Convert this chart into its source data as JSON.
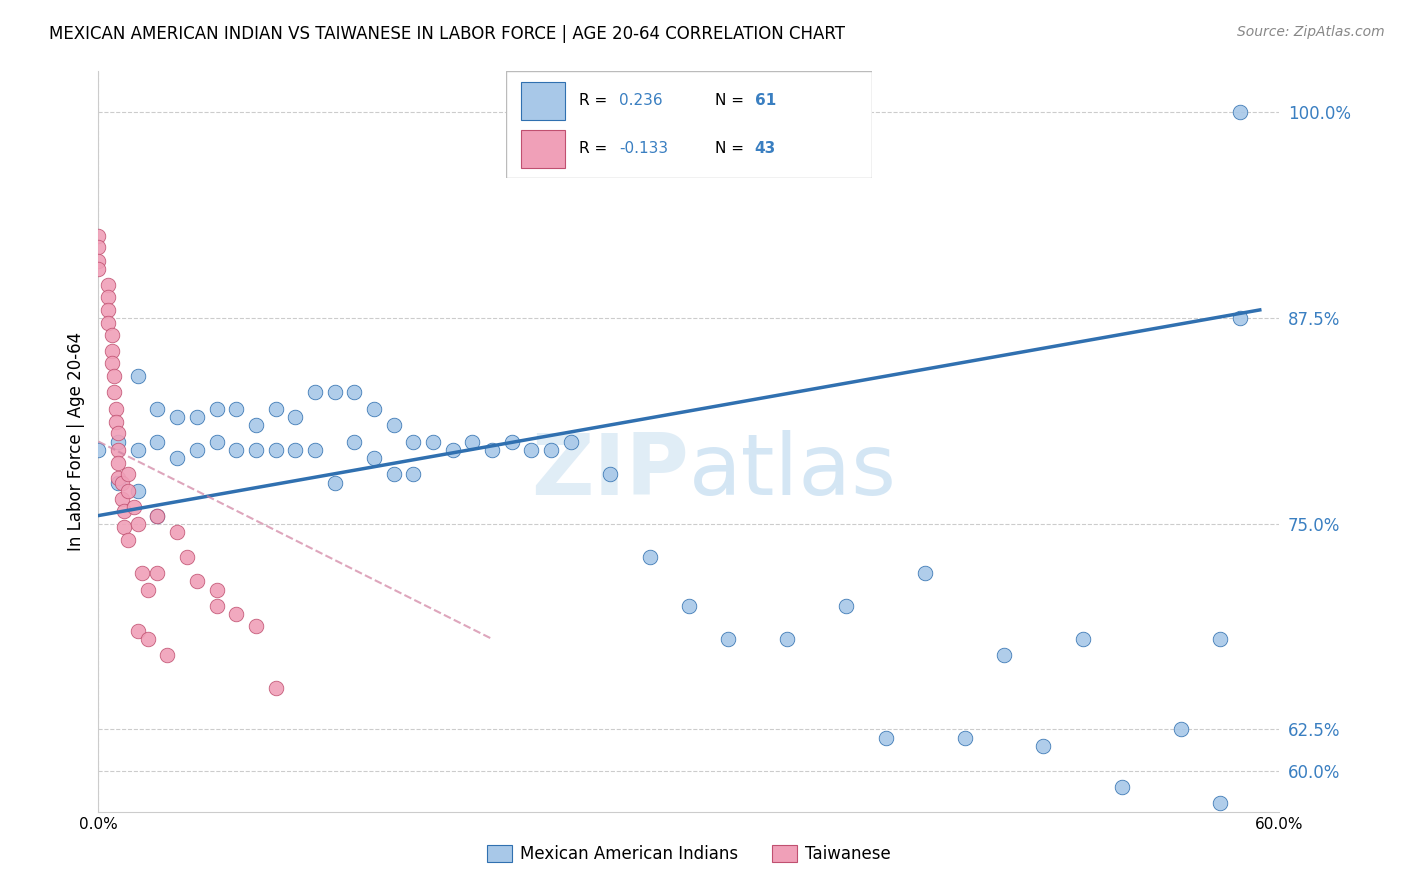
{
  "title": "MEXICAN AMERICAN INDIAN VS TAIWANESE IN LABOR FORCE | AGE 20-64 CORRELATION CHART",
  "source": "Source: ZipAtlas.com",
  "ylabel": "In Labor Force | Age 20-64",
  "r_blue": 0.236,
  "n_blue": 61,
  "r_pink": -0.133,
  "n_pink": 43,
  "legend_label_blue": "Mexican American Indians",
  "legend_label_pink": "Taiwanese",
  "xlim": [
    0.0,
    0.6
  ],
  "ylim": [
    0.575,
    1.025
  ],
  "yticks": [
    0.6,
    0.625,
    0.75,
    0.875,
    1.0
  ],
  "ytick_labels": [
    "60.0%",
    "62.5%",
    "75.0%",
    "87.5%",
    "100.0%"
  ],
  "xticks": [
    0.0,
    0.1,
    0.2,
    0.3,
    0.4,
    0.5,
    0.6
  ],
  "xtick_labels": [
    "0.0%",
    "",
    "",
    "",
    "",
    "",
    "60.0%"
  ],
  "watermark_zip": "ZIP",
  "watermark_atlas": "atlas",
  "blue_color": "#a8c8e8",
  "pink_color": "#f0a0b8",
  "trend_blue_color": "#3070b0",
  "trend_pink_color": "#d080a0",
  "blue_x": [
    0.0,
    0.01,
    0.01,
    0.02,
    0.02,
    0.02,
    0.03,
    0.03,
    0.03,
    0.04,
    0.04,
    0.05,
    0.05,
    0.06,
    0.06,
    0.07,
    0.07,
    0.08,
    0.08,
    0.09,
    0.09,
    0.1,
    0.1,
    0.11,
    0.11,
    0.12,
    0.12,
    0.13,
    0.13,
    0.14,
    0.14,
    0.15,
    0.15,
    0.16,
    0.16,
    0.17,
    0.18,
    0.19,
    0.2,
    0.21,
    0.22,
    0.23,
    0.24,
    0.26,
    0.28,
    0.3,
    0.32,
    0.35,
    0.38,
    0.4,
    0.42,
    0.44,
    0.46,
    0.48,
    0.5,
    0.52,
    0.55,
    0.57,
    0.57,
    0.58,
    0.58
  ],
  "blue_y": [
    0.795,
    0.8,
    0.775,
    0.84,
    0.795,
    0.77,
    0.82,
    0.8,
    0.755,
    0.815,
    0.79,
    0.815,
    0.795,
    0.82,
    0.8,
    0.82,
    0.795,
    0.81,
    0.795,
    0.82,
    0.795,
    0.815,
    0.795,
    0.83,
    0.795,
    0.83,
    0.775,
    0.83,
    0.8,
    0.82,
    0.79,
    0.81,
    0.78,
    0.8,
    0.78,
    0.8,
    0.795,
    0.8,
    0.795,
    0.8,
    0.795,
    0.795,
    0.8,
    0.78,
    0.73,
    0.7,
    0.68,
    0.68,
    0.7,
    0.62,
    0.72,
    0.62,
    0.67,
    0.615,
    0.68,
    0.59,
    0.625,
    0.68,
    0.58,
    0.875,
    1.0
  ],
  "pink_x": [
    0.0,
    0.0,
    0.0,
    0.0,
    0.005,
    0.005,
    0.005,
    0.005,
    0.007,
    0.007,
    0.007,
    0.008,
    0.008,
    0.009,
    0.009,
    0.01,
    0.01,
    0.01,
    0.01,
    0.012,
    0.012,
    0.013,
    0.013,
    0.015,
    0.015,
    0.015,
    0.018,
    0.02,
    0.02,
    0.022,
    0.025,
    0.025,
    0.03,
    0.03,
    0.035,
    0.04,
    0.045,
    0.05,
    0.06,
    0.06,
    0.07,
    0.08,
    0.09
  ],
  "pink_y": [
    0.925,
    0.918,
    0.91,
    0.905,
    0.895,
    0.888,
    0.88,
    0.872,
    0.865,
    0.855,
    0.848,
    0.84,
    0.83,
    0.82,
    0.812,
    0.805,
    0.795,
    0.787,
    0.778,
    0.775,
    0.765,
    0.758,
    0.748,
    0.74,
    0.78,
    0.77,
    0.76,
    0.75,
    0.685,
    0.72,
    0.68,
    0.71,
    0.72,
    0.755,
    0.67,
    0.745,
    0.73,
    0.715,
    0.71,
    0.7,
    0.695,
    0.688,
    0.65
  ]
}
